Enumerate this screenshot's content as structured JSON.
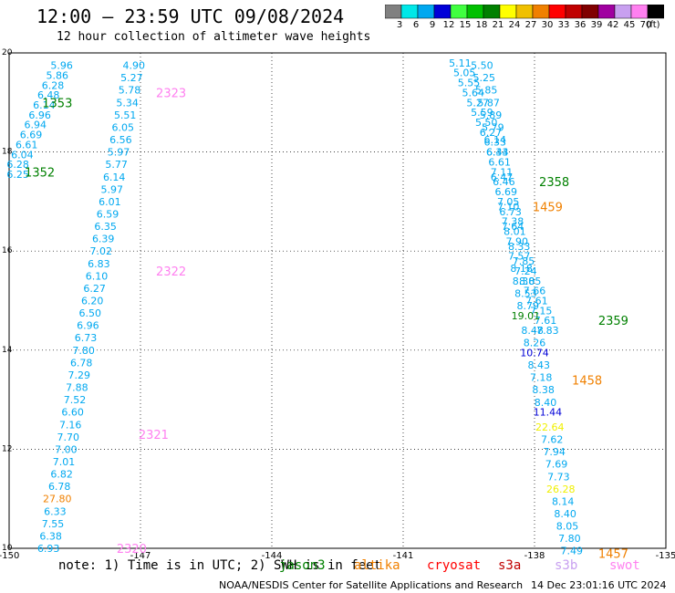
{
  "header": {
    "title": "12:00 – 23:59 UTC 09/08/2024",
    "subtitle": "12 hour collection of altimeter wave heights"
  },
  "colorbar": {
    "bins": [
      {
        "label": "3",
        "color": "#808080"
      },
      {
        "label": "6",
        "color": "#00e8e8"
      },
      {
        "label": "9",
        "color": "#00a8f0"
      },
      {
        "label": "12",
        "color": "#0000d8"
      },
      {
        "label": "15",
        "color": "#40ff40"
      },
      {
        "label": "18",
        "color": "#00c000"
      },
      {
        "label": "21",
        "color": "#008000"
      },
      {
        "label": "24",
        "color": "#ffff00"
      },
      {
        "label": "27",
        "color": "#f0c000"
      },
      {
        "label": "30",
        "color": "#f08000"
      },
      {
        "label": "33",
        "color": "#ff0000"
      },
      {
        "label": "36",
        "color": "#c00000"
      },
      {
        "label": "39",
        "color": "#800000"
      },
      {
        "label": "42",
        "color": "#a000a0"
      },
      {
        "label": "45",
        "color": "#c8a0f0"
      },
      {
        "label": "70",
        "color": "#ff80f0"
      },
      {
        "label": "(ft)",
        "color": "#000000"
      }
    ]
  },
  "chart_data": {
    "type": "scatter",
    "title": "12:00 – 23:59 UTC 09/08/2024",
    "xlim": [
      -150,
      -135
    ],
    "ylim": [
      10,
      20
    ],
    "x_ticks": [
      "-150",
      "-147",
      "-144",
      "-141",
      "-138",
      "-135"
    ],
    "y_ticks": [
      "10",
      "12",
      "14",
      "16",
      "18",
      "20"
    ],
    "grid": true,
    "series": [
      {
        "name": "altika",
        "color": "#00a8f0",
        "points": [
          {
            "x": -148.8,
            "y": 19.75,
            "v": "5.96"
          },
          {
            "x": -148.9,
            "y": 19.55,
            "v": "5.86"
          },
          {
            "x": -149.0,
            "y": 19.35,
            "v": "6.28"
          },
          {
            "x": -149.1,
            "y": 19.15,
            "v": "6.48"
          },
          {
            "x": -149.2,
            "y": 18.95,
            "v": "6.14"
          },
          {
            "x": -149.3,
            "y": 18.75,
            "v": "6.96"
          },
          {
            "x": -149.4,
            "y": 18.55,
            "v": "6.94"
          },
          {
            "x": -149.5,
            "y": 18.35,
            "v": "6.69"
          },
          {
            "x": -149.6,
            "y": 18.15,
            "v": "6.61"
          },
          {
            "x": -149.7,
            "y": 17.95,
            "v": "6.04"
          },
          {
            "x": -149.8,
            "y": 17.75,
            "v": "6.28"
          },
          {
            "x": -149.8,
            "y": 17.55,
            "v": "6.25"
          }
        ]
      },
      {
        "name": "altika-b",
        "color": "#00a8f0",
        "points": [
          {
            "x": -147.15,
            "y": 19.75,
            "v": "4.90"
          },
          {
            "x": -147.2,
            "y": 19.5,
            "v": "5.27"
          },
          {
            "x": -147.25,
            "y": 19.25,
            "v": "5.78"
          },
          {
            "x": -147.3,
            "y": 19.0,
            "v": "5.34"
          },
          {
            "x": -147.35,
            "y": 18.75,
            "v": "5.51"
          },
          {
            "x": -147.4,
            "y": 18.5,
            "v": "6.05"
          },
          {
            "x": -147.45,
            "y": 18.25,
            "v": "6.56"
          },
          {
            "x": -147.5,
            "y": 18.0,
            "v": "5.97"
          },
          {
            "x": -147.55,
            "y": 17.75,
            "v": "5.77"
          },
          {
            "x": -147.6,
            "y": 17.5,
            "v": "6.14"
          },
          {
            "x": -147.65,
            "y": 17.25,
            "v": "5.97"
          },
          {
            "x": -147.7,
            "y": 17.0,
            "v": "6.01"
          },
          {
            "x": -147.75,
            "y": 16.75,
            "v": "6.59"
          },
          {
            "x": -147.8,
            "y": 16.5,
            "v": "6.35"
          },
          {
            "x": -147.85,
            "y": 16.25,
            "v": "6.39"
          },
          {
            "x": -147.9,
            "y": 16.0,
            "v": "7.02"
          },
          {
            "x": -147.95,
            "y": 15.75,
            "v": "6.83"
          },
          {
            "x": -148.0,
            "y": 15.5,
            "v": "6.10"
          },
          {
            "x": -148.05,
            "y": 15.25,
            "v": "6.27"
          },
          {
            "x": -148.1,
            "y": 15.0,
            "v": "6.20"
          },
          {
            "x": -148.15,
            "y": 14.75,
            "v": "6.50"
          },
          {
            "x": -148.2,
            "y": 14.5,
            "v": "6.96"
          },
          {
            "x": -148.25,
            "y": 14.25,
            "v": "6.73"
          },
          {
            "x": -148.3,
            "y": 14.0,
            "v": "7.80"
          },
          {
            "x": -148.35,
            "y": 13.75,
            "v": "6.78"
          },
          {
            "x": -148.4,
            "y": 13.5,
            "v": "7.29"
          },
          {
            "x": -148.45,
            "y": 13.25,
            "v": "7.88"
          },
          {
            "x": -148.5,
            "y": 13.0,
            "v": "7.52"
          },
          {
            "x": -148.55,
            "y": 12.75,
            "v": "6.60"
          },
          {
            "x": -148.6,
            "y": 12.5,
            "v": "7.16"
          },
          {
            "x": -148.65,
            "y": 12.25,
            "v": "7.70"
          },
          {
            "x": -148.7,
            "y": 12.0,
            "v": "7.00"
          },
          {
            "x": -148.75,
            "y": 11.75,
            "v": "7.01"
          },
          {
            "x": -148.8,
            "y": 11.5,
            "v": "6.82"
          },
          {
            "x": -148.85,
            "y": 11.25,
            "v": "6.78"
          },
          {
            "x": -148.9,
            "y": 11.0,
            "v": "27.80",
            "c": "#f08000"
          },
          {
            "x": -148.95,
            "y": 10.75,
            "v": "6.33"
          },
          {
            "x": -149.0,
            "y": 10.5,
            "v": "7.55"
          },
          {
            "x": -149.05,
            "y": 10.25,
            "v": "6.38"
          },
          {
            "x": -149.1,
            "y": 10.0,
            "v": "6.93"
          }
        ]
      },
      {
        "name": "jason",
        "color": "#00a8f0",
        "points": [
          {
            "x": -139.7,
            "y": 19.8,
            "v": "5.11"
          },
          {
            "x": -139.6,
            "y": 19.6,
            "v": "5.05"
          },
          {
            "x": -139.5,
            "y": 19.4,
            "v": "5.55"
          },
          {
            "x": -139.4,
            "y": 19.2,
            "v": "5.64"
          },
          {
            "x": -139.3,
            "y": 19.0,
            "v": "5.27"
          },
          {
            "x": -139.2,
            "y": 18.8,
            "v": "5.59"
          },
          {
            "x": -139.1,
            "y": 18.6,
            "v": "5.50"
          },
          {
            "x": -139.0,
            "y": 18.4,
            "v": "6.27"
          },
          {
            "x": -138.9,
            "y": 18.2,
            "v": "6.33"
          },
          {
            "x": -138.85,
            "y": 18.0,
            "v": "6.43"
          },
          {
            "x": -138.8,
            "y": 17.8,
            "v": "6.61"
          },
          {
            "x": -138.75,
            "y": 17.6,
            "v": "7.11"
          },
          {
            "x": -138.7,
            "y": 17.4,
            "v": "6.46"
          },
          {
            "x": -138.65,
            "y": 17.2,
            "v": "6.69"
          },
          {
            "x": -138.6,
            "y": 17.0,
            "v": "7.05"
          },
          {
            "x": -138.55,
            "y": 16.8,
            "v": "6.73"
          },
          {
            "x": -138.5,
            "y": 16.6,
            "v": "7.38"
          },
          {
            "x": -138.45,
            "y": 16.4,
            "v": "8.01"
          },
          {
            "x": -138.4,
            "y": 16.2,
            "v": "7.90"
          },
          {
            "x": -138.35,
            "y": 15.9,
            "v": "7.57"
          },
          {
            "x": -138.3,
            "y": 15.65,
            "v": "8.18"
          },
          {
            "x": -138.25,
            "y": 15.4,
            "v": "8.38"
          },
          {
            "x": -138.2,
            "y": 15.15,
            "v": "8.53"
          },
          {
            "x": -138.15,
            "y": 14.9,
            "v": "8.79"
          },
          {
            "x": -138.05,
            "y": 14.4,
            "v": "8.48"
          },
          {
            "x": -138.0,
            "y": 14.15,
            "v": "8.26"
          },
          {
            "x": -137.9,
            "y": 13.7,
            "v": "8.43"
          },
          {
            "x": -137.85,
            "y": 13.45,
            "v": "7.18"
          },
          {
            "x": -137.8,
            "y": 13.2,
            "v": "8.38"
          },
          {
            "x": -137.75,
            "y": 12.95,
            "v": "8.40"
          },
          {
            "x": -137.6,
            "y": 12.2,
            "v": "7.62"
          },
          {
            "x": -137.55,
            "y": 11.95,
            "v": "7.94"
          },
          {
            "x": -137.5,
            "y": 11.7,
            "v": "7.69"
          },
          {
            "x": -137.45,
            "y": 11.45,
            "v": "7.73"
          },
          {
            "x": -137.35,
            "y": 10.95,
            "v": "8.14"
          },
          {
            "x": -137.3,
            "y": 10.7,
            "v": "8.40"
          },
          {
            "x": -137.25,
            "y": 10.45,
            "v": "8.05"
          },
          {
            "x": -137.2,
            "y": 10.2,
            "v": "7.80"
          },
          {
            "x": -137.15,
            "y": 9.95,
            "v": "7.49"
          }
        ]
      },
      {
        "name": "jason-b",
        "color": "#00a8f0",
        "points": [
          {
            "x": -139.2,
            "y": 19.75,
            "v": "5.50"
          },
          {
            "x": -139.15,
            "y": 19.5,
            "v": "5.25"
          },
          {
            "x": -139.1,
            "y": 19.25,
            "v": "5.85"
          },
          {
            "x": -139.05,
            "y": 19.0,
            "v": "5.87"
          },
          {
            "x": -139.0,
            "y": 18.75,
            "v": "5.89"
          },
          {
            "x": -138.95,
            "y": 18.5,
            "v": "5.79"
          },
          {
            "x": -138.9,
            "y": 18.25,
            "v": "6.14"
          },
          {
            "x": -138.85,
            "y": 18.0,
            "v": "6.34"
          },
          {
            "x": -138.75,
            "y": 17.5,
            "v": "6.47"
          },
          {
            "x": -138.6,
            "y": 16.9,
            "v": "7.10"
          },
          {
            "x": -138.5,
            "y": 16.5,
            "v": "7.64"
          },
          {
            "x": -138.35,
            "y": 16.1,
            "v": "8.33"
          },
          {
            "x": -138.25,
            "y": 15.8,
            "v": "7.85"
          },
          {
            "x": -138.2,
            "y": 15.6,
            "v": "7.24"
          },
          {
            "x": -138.1,
            "y": 15.4,
            "v": "8.05"
          },
          {
            "x": -138.0,
            "y": 15.2,
            "v": "7.66"
          },
          {
            "x": -137.95,
            "y": 15.0,
            "v": "7.61"
          },
          {
            "x": -137.85,
            "y": 14.8,
            "v": "7.15"
          },
          {
            "x": -137.75,
            "y": 14.6,
            "v": "7.61"
          },
          {
            "x": -137.7,
            "y": 14.4,
            "v": "7.83"
          }
        ]
      },
      {
        "name": "cryosat-alt",
        "color": "#0000d8",
        "points": [
          {
            "x": -138.0,
            "y": 13.95,
            "v": "10.74"
          },
          {
            "x": -137.7,
            "y": 12.75,
            "v": "11.44"
          }
        ]
      },
      {
        "name": "s3-green",
        "color": "#008000",
        "points": [
          {
            "x": -138.2,
            "y": 14.7,
            "v": "19.01"
          }
        ]
      },
      {
        "name": "yellow",
        "color": "#f0f000",
        "points": [
          {
            "x": -137.65,
            "y": 12.45,
            "v": "22.64"
          },
          {
            "x": -137.4,
            "y": 11.2,
            "v": "26.28"
          }
        ]
      }
    ],
    "track_labels": [
      {
        "x": -148.9,
        "y": 19.0,
        "v": "1353",
        "c": "#008000"
      },
      {
        "x": -149.3,
        "y": 17.6,
        "v": "1352",
        "c": "#008000"
      },
      {
        "x": -146.3,
        "y": 19.2,
        "v": "2323",
        "c": "#ff80f0"
      },
      {
        "x": -146.3,
        "y": 15.6,
        "v": "2322",
        "c": "#ff80f0"
      },
      {
        "x": -146.7,
        "y": 12.3,
        "v": "2321",
        "c": "#ff80f0"
      },
      {
        "x": -147.2,
        "y": 10.0,
        "v": "2320",
        "c": "#ff80f0"
      },
      {
        "x": -137.55,
        "y": 17.4,
        "v": "2358",
        "c": "#008000"
      },
      {
        "x": -137.7,
        "y": 16.9,
        "v": "1459",
        "c": "#f08000"
      },
      {
        "x": -136.2,
        "y": 14.6,
        "v": "2359",
        "c": "#008000"
      },
      {
        "x": -136.8,
        "y": 13.4,
        "v": "1458",
        "c": "#f08000"
      },
      {
        "x": -136.2,
        "y": 9.9,
        "v": "1457",
        "c": "#f08000"
      }
    ]
  },
  "note": "note: 1) Time is in UTC; 2) SWH is in feet",
  "satellites": [
    {
      "name": "jason3",
      "color": "#008000"
    },
    {
      "name": "altika",
      "color": "#f08000"
    },
    {
      "name": "cryosat",
      "color": "#ff0000"
    },
    {
      "name": "s3a",
      "color": "#c00000"
    },
    {
      "name": "s3b",
      "color": "#c8a0f0"
    },
    {
      "name": "swot",
      "color": "#ff80f0"
    }
  ],
  "footer": {
    "agency": "NOAA/NESDIS Center for Satellite Applications and Research",
    "timestamp": "14 Dec 23:01:16 UTC 2024"
  }
}
